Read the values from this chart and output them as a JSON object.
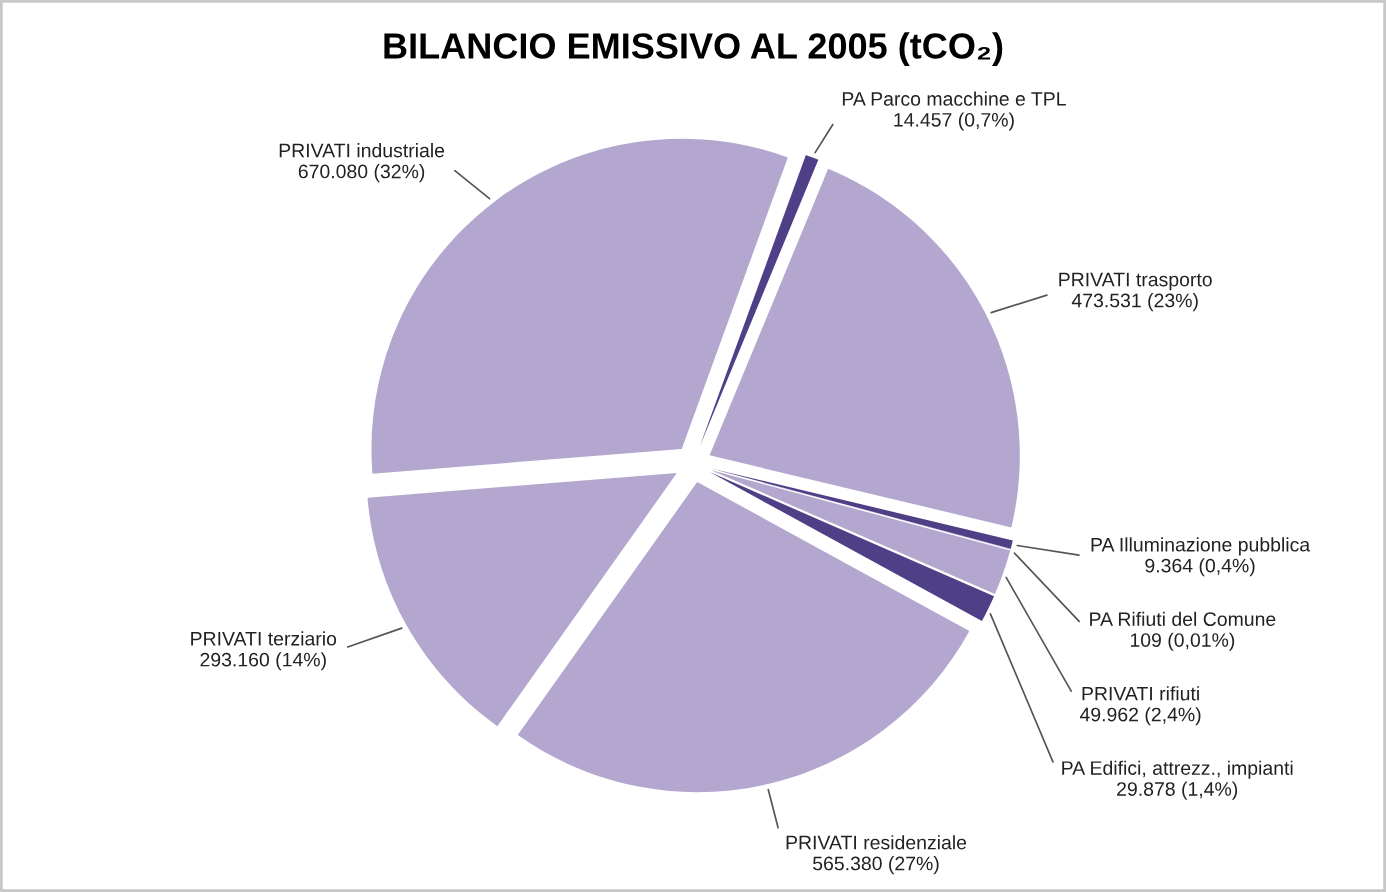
{
  "chart_data": {
    "type": "pie",
    "title": "BILANCIO EMISSIVO AL 2005 (tCO₂)",
    "categories": [
      "PA Parco macchine e TPL",
      "PRIVATI trasporto",
      "PA Illuminazione pubblica",
      "PA Rifiuti del Comune",
      "PRIVATI rifiuti",
      "PA Edifici, attrezz., impianti",
      "PRIVATI residenziale",
      "PRIVATI terziario",
      "PRIVATI industriale"
    ],
    "values": [
      14457,
      473531,
      9364,
      109,
      49962,
      29878,
      565380,
      293160,
      670080
    ],
    "value_labels": [
      "14.457 (0,7%)",
      "473.531 (23%)",
      "9.364 (0,4%)",
      "109 (0,01%)",
      "49.962 (2,4%)",
      "29.878 (1,4%)",
      "565.380 (27%)",
      "293.160 (14%)",
      "670.080 (32%)"
    ],
    "colors": [
      "#4f3f86",
      "#b4a7cf",
      "#4f3f86",
      "#4f3f86",
      "#b4a7cf",
      "#4f3f86",
      "#b4a7cf",
      "#b4a7cf",
      "#b4a7cf"
    ],
    "legend": false
  }
}
